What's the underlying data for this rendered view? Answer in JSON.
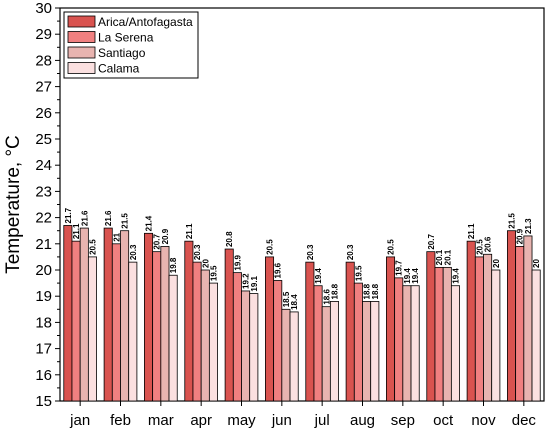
{
  "chart_data": {
    "type": "bar",
    "xlabel": "",
    "ylabel": "Temperature, °C",
    "ylim": [
      15,
      30
    ],
    "yticks": [
      15,
      16,
      17,
      18,
      19,
      20,
      21,
      22,
      23,
      24,
      25,
      26,
      27,
      28,
      29,
      30
    ],
    "categories": [
      "jan",
      "feb",
      "mar",
      "apr",
      "may",
      "jun",
      "jul",
      "aug",
      "sep",
      "oct",
      "nov",
      "dec"
    ],
    "legend_position": "top-left",
    "grid": false,
    "series": [
      {
        "name": "Arica/Antofagasta",
        "color": "#d9534f",
        "values": [
          21.7,
          21.6,
          21.4,
          21.1,
          20.8,
          20.5,
          20.3,
          20.3,
          20.5,
          20.7,
          21.1,
          21.5
        ]
      },
      {
        "name": "La Serena",
        "color": "#f08080",
        "values": [
          21.1,
          21,
          20.7,
          20.3,
          19.9,
          19.6,
          19.4,
          19.5,
          19.7,
          20.1,
          20.5,
          20.9
        ]
      },
      {
        "name": "Santiago",
        "color": "#e8b4b0",
        "values": [
          21.6,
          21.5,
          20.9,
          20,
          19.2,
          18.5,
          18.6,
          18.8,
          19.4,
          20.1,
          20.6,
          21.3
        ]
      },
      {
        "name": "Calama",
        "color": "#fbe0e0",
        "values": [
          20.5,
          20.3,
          19.8,
          19.5,
          19.1,
          18.4,
          18.8,
          18.8,
          19.4,
          19.4,
          20,
          20
        ]
      }
    ]
  }
}
